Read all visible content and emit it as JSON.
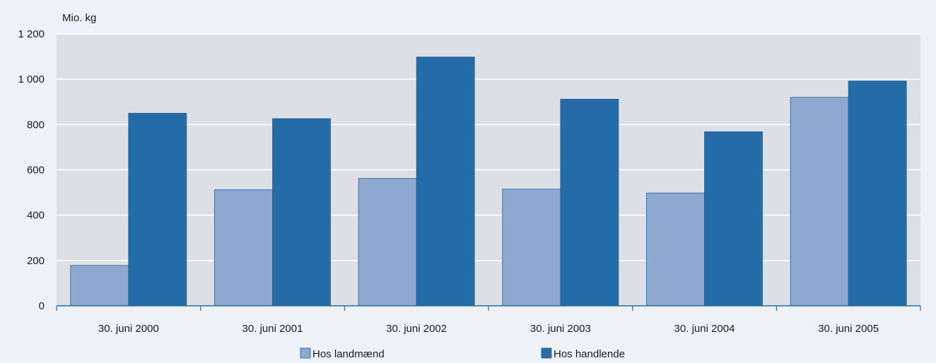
{
  "chart_data": {
    "type": "bar",
    "unit_label": "Mio. kg",
    "categories": [
      "30. juni 2000",
      "30. juni 2001",
      "30. juni 2002",
      "30. juni 2003",
      "30. juni 2004",
      "30. juni 2005"
    ],
    "series": [
      {
        "name": "Hos landmænd",
        "values": [
          178,
          512,
          562,
          515,
          498,
          920
        ],
        "color": "#8fa8d0"
      },
      {
        "name": "Hos handlende",
        "values": [
          850,
          826,
          1098,
          912,
          768,
          992
        ],
        "color": "#236ca8"
      }
    ],
    "y_ticks": [
      "0",
      "200",
      "400",
      "600",
      "800",
      "1 000",
      "1 200"
    ],
    "ylim": [
      0,
      1200
    ],
    "grid": true,
    "legend_position": "bottom-center",
    "colors": {
      "plot_background": "#dcdfe3",
      "page_background": "#eef1f5",
      "gridline": "#ffffff",
      "axis": "#236ca8"
    }
  }
}
